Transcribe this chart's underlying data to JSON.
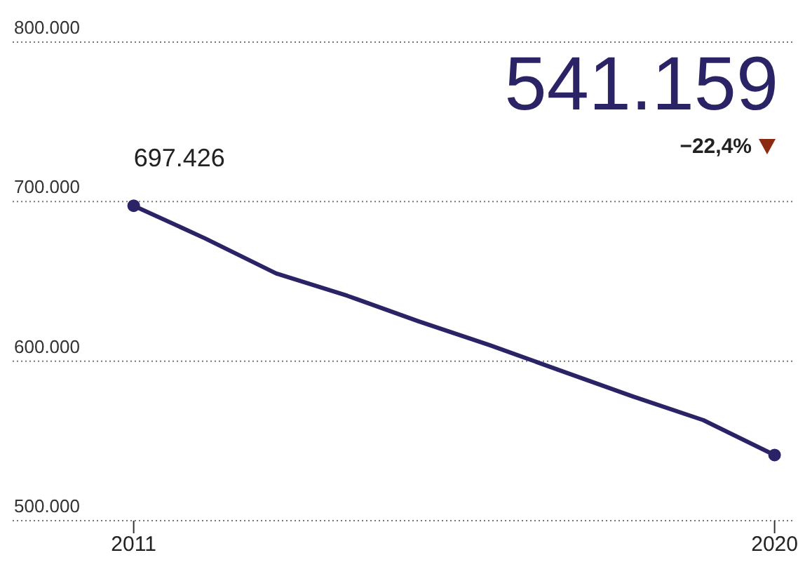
{
  "chart_data": {
    "type": "line",
    "x": [
      2011,
      2012,
      2013,
      2014,
      2015,
      2016,
      2017,
      2018,
      2019,
      2020
    ],
    "xlim": [
      2009.3,
      2020.25
    ],
    "xticks": [
      2011,
      2020
    ],
    "ylim": [
      500000,
      800000
    ],
    "yticks": [
      {
        "value": 500000,
        "label": "500.000"
      },
      {
        "value": 600000,
        "label": "600.000"
      },
      {
        "value": 700000,
        "label": "700.000"
      },
      {
        "value": 800000,
        "label": "800.000"
      }
    ],
    "series": [
      {
        "color": "#2a2466",
        "values": [
          697426,
          677000,
          655000,
          641000,
          625000,
          610000,
          594000,
          578000,
          563000,
          541159
        ],
        "value_labels": [
          "697.426",
          null,
          null,
          null,
          null,
          null,
          null,
          null,
          null,
          null
        ]
      }
    ],
    "annotations": [
      "541.159",
      "−22,4%"
    ],
    "grid": "y",
    "line_style": "solid"
  }
}
